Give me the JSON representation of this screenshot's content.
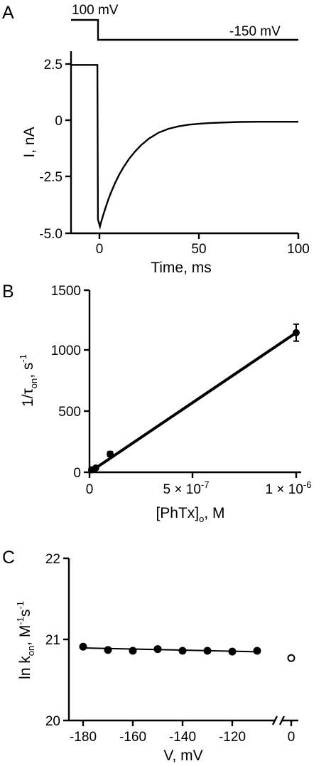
{
  "chart_data": [
    {
      "panel": "A",
      "type": "line",
      "protocol": {
        "hold_label": "100 mV",
        "step_label": "-150 mV"
      },
      "xticks": [
        "0",
        "50",
        "100"
      ],
      "yticks": [
        "2.5",
        "0",
        "-2.5",
        "-5.0"
      ],
      "xlabel": "Time, ms",
      "ylabel": "I, nA",
      "xlim": [
        -14,
        100
      ],
      "ylim": [
        -5.0,
        2.7
      ],
      "series": [
        {
          "x": [
            -14,
            -10,
            -6,
            -2,
            -0.8,
            -0.5,
            0.5,
            1,
            2,
            3,
            4,
            5,
            6,
            8,
            10,
            12,
            15,
            18,
            21,
            25,
            30,
            35,
            40,
            45,
            50,
            55,
            60,
            70,
            80,
            90,
            100
          ],
          "y": [
            2.45,
            2.45,
            2.45,
            2.45,
            2.45,
            -4.4,
            -4.72,
            -4.55,
            -4.25,
            -3.97,
            -3.7,
            -3.45,
            -3.22,
            -2.8,
            -2.44,
            -2.13,
            -1.73,
            -1.4,
            -1.12,
            -0.82,
            -0.55,
            -0.38,
            -0.27,
            -0.2,
            -0.16,
            -0.13,
            -0.11,
            -0.08,
            -0.07,
            -0.07,
            -0.07
          ]
        }
      ]
    },
    {
      "panel": "B",
      "type": "scatter",
      "xticks": [
        "0",
        "5 × 10",
        "1 × 10"
      ],
      "xtick_exponents": [
        "",
        "-7",
        "-6"
      ],
      "yticks": [
        "0",
        "500",
        "1000",
        "1500"
      ],
      "xlabel_main": "[PhTx]",
      "xlabel_sub": "o",
      "xlabel_tail": ", M",
      "ylabel_main": "1/τ",
      "ylabel_sub": "on",
      "ylabel_tail": ", s",
      "ylabel_sup": "-1",
      "xlim": [
        0,
        1.02e-06
      ],
      "ylim": [
        0,
        1500
      ],
      "points": [
        {
          "x": 1e-08,
          "y": 20,
          "err": 10
        },
        {
          "x": 3e-08,
          "y": 35,
          "err": 12
        },
        {
          "x": 1e-07,
          "y": 150,
          "err": 20
        },
        {
          "x": 1e-06,
          "y": 1150,
          "err": 70
        }
      ],
      "fit": {
        "x": [
          0,
          1e-06
        ],
        "y": 0,
        "y_end": 1150
      }
    },
    {
      "panel": "C",
      "type": "scatter",
      "xticks": [
        "-180",
        "-160",
        "-140",
        "-120",
        "0"
      ],
      "yticks": [
        "22",
        "21",
        "20"
      ],
      "xlabel": "V, mV",
      "ylabel_main": "ln k",
      "ylabel_sub": "on",
      "ylabel_mid": ", M",
      "ylabel_sup1": "-1",
      "ylabel_s": "s",
      "ylabel_sup2": "-1",
      "xlim": [
        -185,
        -106
      ],
      "ylim": [
        20,
        22
      ],
      "axis_break": true,
      "points": [
        {
          "x": -180,
          "y": 20.91
        },
        {
          "x": -170,
          "y": 20.87
        },
        {
          "x": -160,
          "y": 20.86
        },
        {
          "x": -150,
          "y": 20.88
        },
        {
          "x": -140,
          "y": 20.86
        },
        {
          "x": -130,
          "y": 20.86
        },
        {
          "x": -120,
          "y": 20.85
        },
        {
          "x": -110,
          "y": 20.86
        }
      ],
      "fit": {
        "x": [
          -180,
          -110
        ],
        "y": [
          20.895,
          20.848
        ]
      },
      "open_point": {
        "x": 0,
        "y": 20.77
      }
    }
  ]
}
